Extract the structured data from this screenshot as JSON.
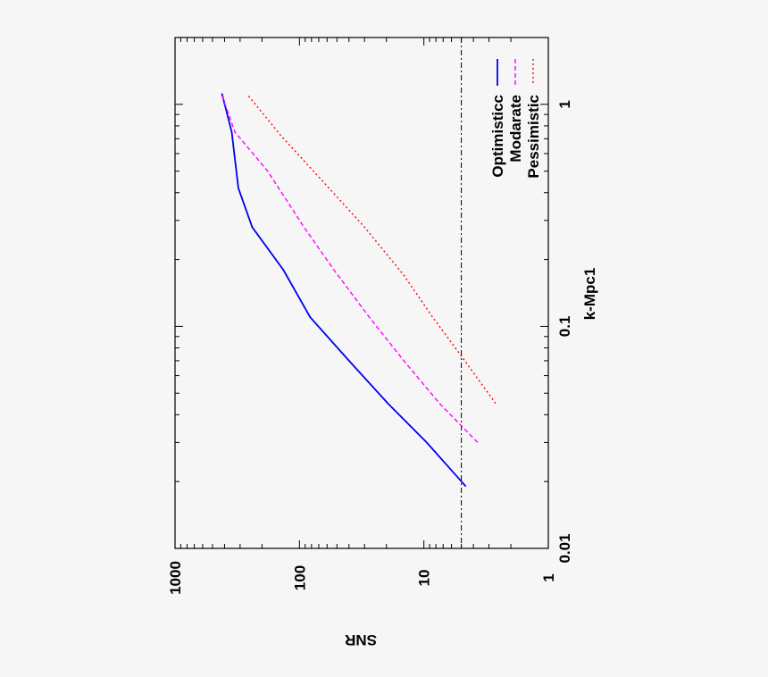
{
  "chart_data": {
    "type": "line",
    "title": "",
    "xlabel": "k-Mpc1",
    "ylabel": "SNR",
    "x_scale": "log",
    "y_scale": "log",
    "xlim": [
      0.01,
      2
    ],
    "ylim": [
      1,
      1000
    ],
    "x_ticks": [
      {
        "value": 0.01,
        "label": "0.01"
      },
      {
        "value": 0.1,
        "label": "0.1"
      },
      {
        "value": 1,
        "label": "1"
      }
    ],
    "y_ticks": [
      {
        "value": 1,
        "label": "1"
      },
      {
        "value": 10,
        "label": "10"
      },
      {
        "value": 100,
        "label": "100"
      },
      {
        "value": 1000,
        "label": "1000"
      }
    ],
    "series": [
      {
        "name": "Optimisticc",
        "color": "#0000ee",
        "dash": "solid",
        "points": [
          [
            0.019,
            4.6
          ],
          [
            0.03,
            9.5
          ],
          [
            0.045,
            19.5
          ],
          [
            0.07,
            40
          ],
          [
            0.11,
            82
          ],
          [
            0.18,
            135
          ],
          [
            0.28,
            240
          ],
          [
            0.42,
            310
          ],
          [
            0.75,
            350
          ],
          [
            1.12,
            420
          ]
        ]
      },
      {
        "name": "Modarate",
        "color": "#ff00ff",
        "dash": "dashed",
        "points": [
          [
            0.03,
            3.7
          ],
          [
            0.045,
            7.5
          ],
          [
            0.07,
            14.5
          ],
          [
            0.11,
            27.5
          ],
          [
            0.18,
            53
          ],
          [
            0.28,
            92
          ],
          [
            0.5,
            180
          ],
          [
            0.75,
            330
          ],
          [
            1.12,
            425
          ]
        ]
      },
      {
        "name": "Pessimistic",
        "color": "#ff0000",
        "dash": "dotted",
        "points": [
          [
            0.045,
            2.65
          ],
          [
            0.07,
            4.7
          ],
          [
            0.11,
            8.5
          ],
          [
            0.17,
            14.5
          ],
          [
            0.28,
            30
          ],
          [
            0.45,
            65
          ],
          [
            0.72,
            140
          ],
          [
            1.1,
            260
          ]
        ]
      }
    ],
    "reference_line": {
      "y": 5,
      "color": "#000000",
      "dash": "dashdot"
    },
    "legend": {
      "placement": "top-right",
      "entries": [
        "Optimisticc",
        "Modarate",
        "Pessimistic"
      ]
    },
    "grid": false,
    "orientation": "rotated 90 degrees clockwise"
  }
}
